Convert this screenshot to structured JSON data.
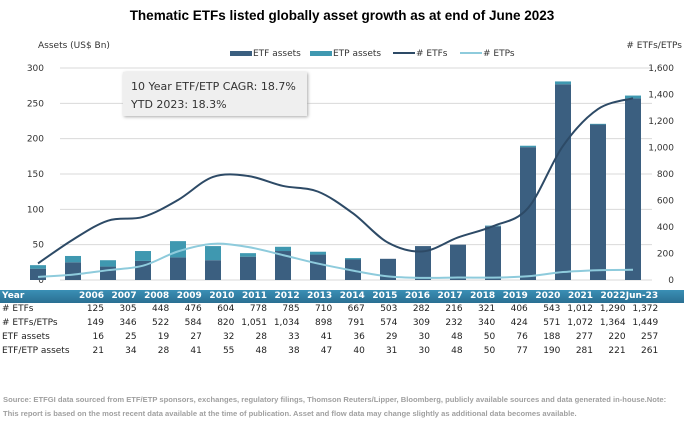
{
  "chart_data": {
    "type": "bar+line",
    "title": "Thematic ETFs listed globally asset growth as at end of June 2023",
    "ylabel_left": "Assets (US$ Bn)",
    "ylabel_right": "# ETFs/ETPs",
    "ylim_left": [
      0,
      300
    ],
    "ylim_right": [
      0,
      1600
    ],
    "yticks_left": [
      "0",
      "50",
      "100",
      "150",
      "200",
      "250",
      "300"
    ],
    "yticks_right": [
      "0",
      "200",
      "400",
      "600",
      "800",
      "1,000",
      "1,200",
      "1,400",
      "1,600"
    ],
    "grid": true,
    "legend_position": "top",
    "categories": [
      "2006",
      "2007",
      "2008",
      "2009",
      "2010",
      "2011",
      "2012",
      "2013",
      "2014",
      "2015",
      "2016",
      "2017",
      "2018",
      "2019",
      "2020",
      "2021",
      "2022",
      "Jun-23"
    ],
    "series": [
      {
        "name": "ETF assets",
        "type": "bar",
        "axis": "left",
        "color": "#3b5f80",
        "values": [
          16,
          25,
          19,
          27,
          32,
          28,
          33,
          41,
          36,
          29,
          30,
          48,
          50,
          76,
          188,
          277,
          220,
          257
        ]
      },
      {
        "name": "ETP assets",
        "type": "bar",
        "axis": "left",
        "color": "#3f98b0",
        "values": [
          5,
          9,
          9,
          14,
          23,
          20,
          5,
          6,
          4,
          2,
          0,
          0,
          0,
          1,
          2,
          4,
          1,
          4
        ]
      },
      {
        "name": "# ETFs",
        "type": "line",
        "axis": "right",
        "color": "#2d4a66",
        "values": [
          125,
          305,
          448,
          476,
          604,
          778,
          785,
          710,
          667,
          503,
          282,
          216,
          321,
          406,
          543,
          1012,
          1290,
          1372
        ]
      },
      {
        "name": "# ETPs",
        "type": "line",
        "axis": "right",
        "color": "#8ecbdc",
        "values": [
          24,
          41,
          74,
          108,
          216,
          273,
          249,
          188,
          124,
          71,
          27,
          16,
          19,
          18,
          28,
          60,
          74,
          77
        ]
      }
    ]
  },
  "annotation": {
    "line1": "10 Year ETF/ETP CAGR: 18.7%",
    "line2": "YTD 2023: 18.3%"
  },
  "table": {
    "header": "Year",
    "rows": [
      {
        "label": "# ETFs",
        "values": [
          "125",
          "305",
          "448",
          "476",
          "604",
          "778",
          "785",
          "710",
          "667",
          "503",
          "282",
          "216",
          "321",
          "406",
          "543",
          "1,012",
          "1,290",
          "1,372"
        ]
      },
      {
        "label": "# ETFs/ETPs",
        "values": [
          "149",
          "346",
          "522",
          "584",
          "820",
          "1,051",
          "1,034",
          "898",
          "791",
          "574",
          "309",
          "232",
          "340",
          "424",
          "571",
          "1,072",
          "1,364",
          "1,449"
        ]
      },
      {
        "label": "ETF assets",
        "values": [
          "16",
          "25",
          "19",
          "27",
          "32",
          "28",
          "33",
          "41",
          "36",
          "29",
          "30",
          "48",
          "50",
          "76",
          "188",
          "277",
          "220",
          "257"
        ]
      },
      {
        "label": "ETF/ETP assets",
        "values": [
          "21",
          "34",
          "28",
          "41",
          "55",
          "48",
          "38",
          "47",
          "40",
          "31",
          "30",
          "48",
          "50",
          "77",
          "190",
          "281",
          "221",
          "261"
        ]
      }
    ]
  },
  "footnote": "Source: ETFGI data sourced from ETF/ETP sponsors, exchanges, regulatory filings, Thomson Reuters/Lipper, Bloomberg, publicly available sources and data generated in-house.Note: This report is based on the most recent data available at the time of publication. Asset and flow data may change slightly as additional data becomes available."
}
